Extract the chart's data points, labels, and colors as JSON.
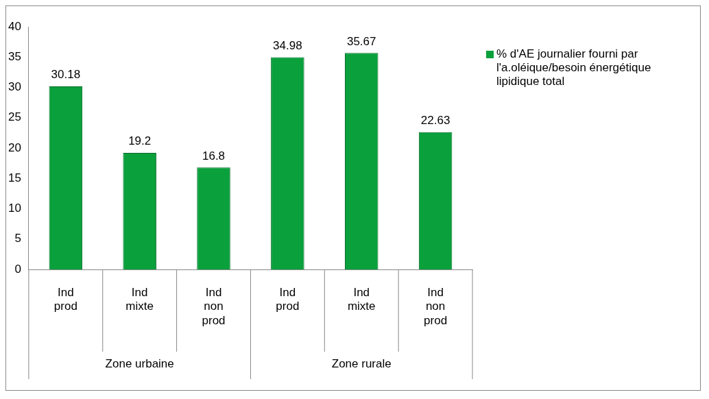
{
  "chart_data": {
    "type": "bar",
    "categories": [
      "Ind prod",
      "Ind mixte",
      "Ind non prod",
      "Ind prod",
      "Ind mixte",
      "Ind non prod"
    ],
    "series": [
      {
        "name": "% d'AE journalier fourni par l'a.oléique/besoin énergétique lipidique total",
        "color": "#0aa03c",
        "values": [
          30.18,
          19.2,
          16.8,
          34.98,
          35.67,
          22.63
        ]
      }
    ],
    "ylim": [
      0,
      40
    ],
    "yticks": [
      0,
      5,
      10,
      15,
      20,
      25,
      30,
      35,
      40
    ],
    "grid": false,
    "legend": "right",
    "data_labels": true,
    "annotations": [
      "Zone urbaine",
      "Zone rurale"
    ]
  }
}
